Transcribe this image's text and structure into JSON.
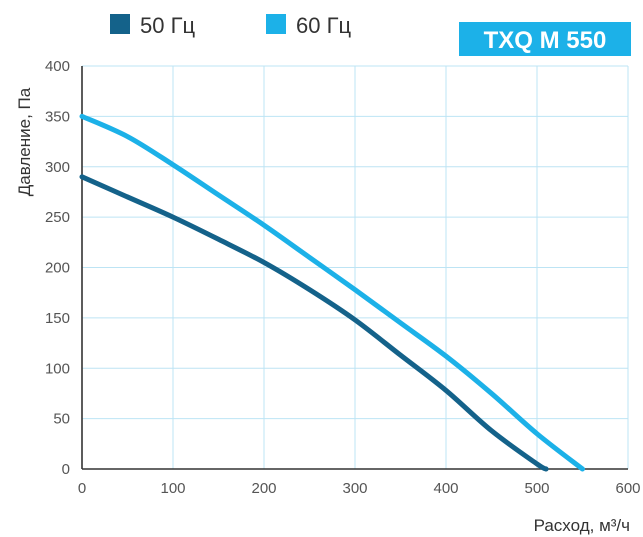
{
  "chart_data": {
    "type": "line",
    "badge": "TXQ M 550",
    "xlabel": "Расход, м³/ч",
    "ylabel": "Давление, Па",
    "xlim": [
      0,
      600
    ],
    "ylim": [
      0,
      400
    ],
    "x_ticks": [
      0,
      100,
      200,
      300,
      400,
      500,
      600
    ],
    "y_ticks": [
      0,
      50,
      100,
      150,
      200,
      250,
      300,
      350,
      400
    ],
    "grid": true,
    "legend_position": "top-left",
    "series": [
      {
        "name": "50 Гц",
        "color": "#14628a",
        "points": [
          [
            0,
            290
          ],
          [
            50,
            270
          ],
          [
            100,
            250
          ],
          [
            150,
            228
          ],
          [
            200,
            205
          ],
          [
            250,
            178
          ],
          [
            300,
            148
          ],
          [
            350,
            113
          ],
          [
            400,
            78
          ],
          [
            450,
            38
          ],
          [
            500,
            5
          ],
          [
            510,
            0
          ]
        ]
      },
      {
        "name": "60 Гц",
        "color": "#1cb1e8",
        "points": [
          [
            0,
            350
          ],
          [
            50,
            330
          ],
          [
            100,
            302
          ],
          [
            150,
            272
          ],
          [
            200,
            242
          ],
          [
            250,
            210
          ],
          [
            300,
            178
          ],
          [
            350,
            145
          ],
          [
            400,
            112
          ],
          [
            450,
            75
          ],
          [
            500,
            35
          ],
          [
            550,
            0
          ]
        ]
      }
    ]
  }
}
